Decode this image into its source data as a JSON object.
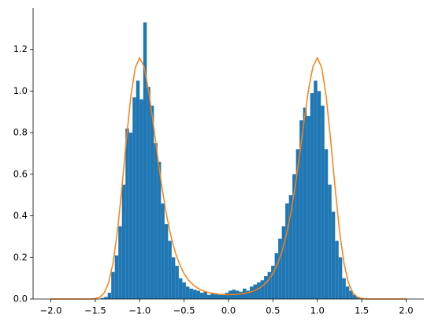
{
  "chart_data": {
    "type": "histogram",
    "bins": [
      -1.44,
      -1.4,
      -1.36,
      -1.32,
      -1.28,
      -1.24,
      -1.2,
      -1.16,
      -1.12,
      -1.08,
      -1.04,
      -1.0,
      -0.96,
      -0.92,
      -0.88,
      -0.84,
      -0.8,
      -0.76,
      -0.72,
      -0.68,
      -0.64,
      -0.6,
      -0.56,
      -0.52,
      -0.48,
      -0.44,
      -0.4,
      -0.36,
      -0.32,
      -0.28,
      -0.24,
      -0.2,
      -0.16,
      -0.12,
      -0.08,
      -0.04,
      0,
      0.04,
      0.08,
      0.12,
      0.16,
      0.2,
      0.24,
      0.28,
      0.32,
      0.36,
      0.4,
      0.44,
      0.48,
      0.52,
      0.56,
      0.6,
      0.64,
      0.68,
      0.72,
      0.76,
      0.8,
      0.84,
      0.88,
      0.92,
      0.96,
      1.0,
      1.04,
      1.08,
      1.12,
      1.16,
      1.2,
      1.24,
      1.28,
      1.32,
      1.36,
      1.4,
      1.44,
      1.48,
      1.52,
      1.56
    ],
    "values": [
      0.005,
      0.01,
      0.03,
      0.13,
      0.21,
      0.35,
      0.55,
      0.82,
      0.8,
      0.97,
      1.05,
      0.96,
      1.33,
      1.02,
      0.93,
      0.75,
      0.66,
      0.46,
      0.36,
      0.28,
      0.2,
      0.16,
      0.1,
      0.08,
      0.06,
      0.05,
      0.045,
      0.04,
      0.03,
      0.035,
      0.02,
      0.03,
      0.025,
      0.02,
      0.02,
      0.03,
      0.04,
      0.045,
      0.04,
      0.035,
      0.05,
      0.04,
      0.06,
      0.07,
      0.08,
      0.09,
      0.11,
      0.13,
      0.16,
      0.22,
      0.29,
      0.35,
      0.46,
      0.5,
      0.6,
      0.72,
      0.86,
      0.92,
      0.88,
      0.99,
      1.05,
      1.0,
      0.93,
      0.72,
      0.55,
      0.42,
      0.28,
      0.2,
      0.1,
      0.06,
      0.04,
      0.02,
      0.01,
      0.005,
      0.002
    ],
    "color": "#1f77b4",
    "curve": {
      "color": "#ff7f0e",
      "x": [
        -2.0,
        -1.95,
        -1.9,
        -1.85,
        -1.8,
        -1.75,
        -1.7,
        -1.65,
        -1.6,
        -1.55,
        -1.5,
        -1.45,
        -1.4,
        -1.35,
        -1.3,
        -1.25,
        -1.2,
        -1.15,
        -1.1,
        -1.05,
        -1.0,
        -0.95,
        -0.9,
        -0.85,
        -0.8,
        -0.75,
        -0.7,
        -0.65,
        -0.6,
        -0.55,
        -0.5,
        -0.45,
        -0.4,
        -0.35,
        -0.3,
        -0.25,
        -0.2,
        -0.15,
        -0.1,
        -0.05,
        0,
        0.05,
        0.1,
        0.15,
        0.2,
        0.25,
        0.3,
        0.35,
        0.4,
        0.45,
        0.5,
        0.55,
        0.6,
        0.65,
        0.7,
        0.75,
        0.8,
        0.85,
        0.9,
        0.95,
        1.0,
        1.05,
        1.1,
        1.15,
        1.2,
        1.25,
        1.3,
        1.35,
        1.4,
        1.45,
        1.5,
        1.55,
        1.6,
        1.65,
        1.7,
        1.75,
        1.8,
        1.85,
        1.9,
        1.95,
        2.0
      ],
      "values": [
        0,
        0,
        0,
        0,
        0,
        0,
        0,
        0,
        0,
        0,
        0.002,
        0.009,
        0.029,
        0.078,
        0.173,
        0.327,
        0.535,
        0.765,
        0.973,
        1.112,
        1.16,
        1.117,
        1.004,
        0.853,
        0.691,
        0.539,
        0.41,
        0.306,
        0.225,
        0.166,
        0.122,
        0.091,
        0.069,
        0.053,
        0.042,
        0.034,
        0.029,
        0.025,
        0.023,
        0.022,
        0.021,
        0.022,
        0.023,
        0.025,
        0.029,
        0.034,
        0.042,
        0.053,
        0.069,
        0.091,
        0.122,
        0.166,
        0.225,
        0.306,
        0.41,
        0.539,
        0.691,
        0.853,
        1.004,
        1.117,
        1.16,
        1.112,
        0.973,
        0.765,
        0.535,
        0.327,
        0.173,
        0.078,
        0.029,
        0.009,
        0.002,
        0,
        0,
        0,
        0,
        0,
        0,
        0,
        0,
        0,
        0
      ]
    },
    "xlim": [
      -2.2,
      2.2
    ],
    "ylim": [
      0,
      1.4
    ],
    "xticks": [
      {
        "value": -2.0,
        "label": "−2.0"
      },
      {
        "value": -1.5,
        "label": "−1.5"
      },
      {
        "value": -1.0,
        "label": "−1.0"
      },
      {
        "value": -0.5,
        "label": "−0.5"
      },
      {
        "value": 0,
        "label": "0.0"
      },
      {
        "value": 0.5,
        "label": "0.5"
      },
      {
        "value": 1.0,
        "label": "1.0"
      },
      {
        "value": 1.5,
        "label": "1.5"
      },
      {
        "value": 2.0,
        "label": "2.0"
      }
    ],
    "yticks": [
      {
        "value": 0,
        "label": "0.0"
      },
      {
        "value": 0.2,
        "label": "0.2"
      },
      {
        "value": 0.4,
        "label": "0.4"
      },
      {
        "value": 0.6,
        "label": "0.6"
      },
      {
        "value": 0.8,
        "label": "0.8"
      },
      {
        "value": 1.0,
        "label": "1.0"
      },
      {
        "value": 1.2,
        "label": "1.2"
      }
    ]
  }
}
